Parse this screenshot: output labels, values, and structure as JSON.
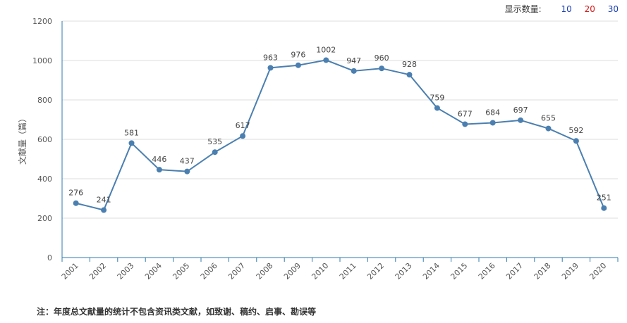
{
  "display_count": {
    "label": "显示数量:",
    "options": [
      {
        "value": "10",
        "color": "#1a3fb5"
      },
      {
        "value": "20",
        "color": "#d01818"
      },
      {
        "value": "30",
        "color": "#1a3fb5"
      }
    ]
  },
  "chart_data": {
    "type": "line",
    "ylabel": "文献量（篇）",
    "xlabel": "",
    "ylim": [
      0,
      1200
    ],
    "yticks": [
      0,
      200,
      400,
      600,
      800,
      1000,
      1200
    ],
    "grid": true,
    "line_color": "#4a7fb0",
    "categories": [
      "2001",
      "2002",
      "2003",
      "2004",
      "2005",
      "2006",
      "2007",
      "2008",
      "2009",
      "2010",
      "2011",
      "2012",
      "2013",
      "2014",
      "2015",
      "2016",
      "2017",
      "2018",
      "2019",
      "2020"
    ],
    "series": [
      {
        "values": [
          276,
          241,
          581,
          446,
          437,
          535,
          617,
          963,
          976,
          1002,
          947,
          960,
          928,
          759,
          677,
          684,
          697,
          655,
          592,
          251
        ]
      }
    ]
  },
  "footnote": "注：年度总文献量的统计不包含资讯类文献，如致谢、稿约、启事、勘误等"
}
